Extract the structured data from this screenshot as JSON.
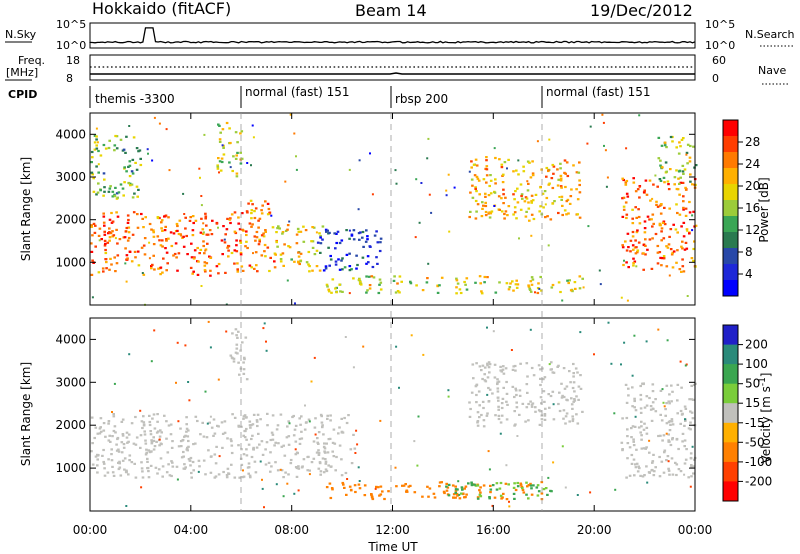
{
  "header": {
    "station": "Hokkaido (fitACF)",
    "beam": "Beam 14",
    "date": "19/Dec/2012"
  },
  "top_panels": {
    "nsky_label": "N.Sky",
    "nsky_ticks": [
      "10^5",
      "10^0"
    ],
    "nsearch_label": "N.Search",
    "freq_label": "Freq.",
    "freq_unit": "[MHz]",
    "freq_ticks": [
      "18",
      "8"
    ],
    "nave_label": "Nave",
    "nave_ticks": [
      "60",
      "0"
    ],
    "cpid_label": "CPID",
    "cpid_segments": [
      {
        "label": "themis -3300",
        "start_hour": 0,
        "end_hour": 6
      },
      {
        "label": "normal (fast) 151",
        "start_hour": 6,
        "end_hour": 12
      },
      {
        "label": "rbsp 200",
        "start_hour": 12,
        "end_hour": 18
      },
      {
        "label": "normal (fast) 151",
        "start_hour": 18,
        "end_hour": 24
      }
    ]
  },
  "power_scale": {
    "label": "Power [dB]",
    "ticks": [
      "28",
      "24",
      "20",
      "16",
      "12",
      "8",
      "4"
    ],
    "colors": [
      "#ff0000",
      "#ff3d00",
      "#ff7a00",
      "#ffb000",
      "#e8d400",
      "#9ccc3a",
      "#3aa655",
      "#2a7a50",
      "#2848a8",
      "#1e28d8",
      "#0000ff"
    ]
  },
  "velocity_scale": {
    "label": "Velocity [m s^-1]",
    "ticks": [
      "200",
      "100",
      "50",
      "15",
      "-15",
      "-50",
      "-100",
      "-200"
    ],
    "colors": [
      "#2020c8",
      "#2a8a7a",
      "#3aa650",
      "#7acd3a",
      "#c0c0bc",
      "#ffb000",
      "#ff8000",
      "#ff4000",
      "#ff0000"
    ]
  },
  "axes": {
    "ylabel": "Slant Range [km]",
    "yticks": [
      "1000",
      "2000",
      "3000",
      "4000"
    ],
    "xticks": [
      "00:00",
      "04:00",
      "08:00",
      "12:00",
      "16:00",
      "20:00",
      "00:00"
    ],
    "xlabel": "Time UT"
  },
  "chart_data": {
    "type": "heatmap",
    "x_unit": "hours UT",
    "xlim": [
      0,
      24
    ],
    "ylim": [
      0,
      4500
    ],
    "power_panel": {
      "features": [
        {
          "hour_start": 0.0,
          "hour_end": 6.0,
          "range_min": 700,
          "range_max": 2200,
          "value_db": 28
        },
        {
          "hour_start": 0.0,
          "hour_end": 2.0,
          "range_min": 2500,
          "range_max": 4000,
          "value_db": 16
        },
        {
          "hour_start": 5.0,
          "hour_end": 6.0,
          "range_min": 3000,
          "range_max": 4300,
          "value_db": 20
        },
        {
          "hour_start": 6.0,
          "hour_end": 7.3,
          "range_min": 800,
          "range_max": 2500,
          "value_db": 26
        },
        {
          "hour_start": 7.3,
          "hour_end": 9.2,
          "range_min": 800,
          "range_max": 1900,
          "value_db": 22
        },
        {
          "hour_start": 9.0,
          "hour_end": 11.5,
          "range_min": 800,
          "range_max": 1800,
          "value_db": 8
        },
        {
          "hour_start": 9.3,
          "hour_end": 19.5,
          "range_min": 300,
          "range_max": 700,
          "value_db": 20
        },
        {
          "hour_start": 15.0,
          "hour_end": 19.5,
          "range_min": 2000,
          "range_max": 3500,
          "value_db": 24
        },
        {
          "hour_start": 21.0,
          "hour_end": 24.0,
          "range_min": 800,
          "range_max": 3000,
          "value_db": 28
        },
        {
          "hour_start": 22.5,
          "hour_end": 24.0,
          "range_min": 2800,
          "range_max": 4000,
          "value_db": 18
        }
      ]
    },
    "velocity_panel": {
      "features": [
        {
          "hour_start": 0.0,
          "hour_end": 10.5,
          "range_min": 800,
          "range_max": 2300,
          "value_ms": 0
        },
        {
          "hour_start": 5.5,
          "hour_end": 6.2,
          "range_min": 3000,
          "range_max": 4300,
          "value_ms": 0
        },
        {
          "hour_start": 9.0,
          "hour_end": 18.0,
          "range_min": 300,
          "range_max": 700,
          "value_ms": -40
        },
        {
          "hour_start": 14.0,
          "hour_end": 18.5,
          "range_min": 300,
          "range_max": 700,
          "value_ms": 30
        },
        {
          "hour_start": 15.0,
          "hour_end": 19.5,
          "range_min": 2000,
          "range_max": 3500,
          "value_ms": 0
        },
        {
          "hour_start": 21.0,
          "hour_end": 24.0,
          "range_min": 800,
          "range_max": 3000,
          "value_ms": 0
        }
      ]
    }
  }
}
